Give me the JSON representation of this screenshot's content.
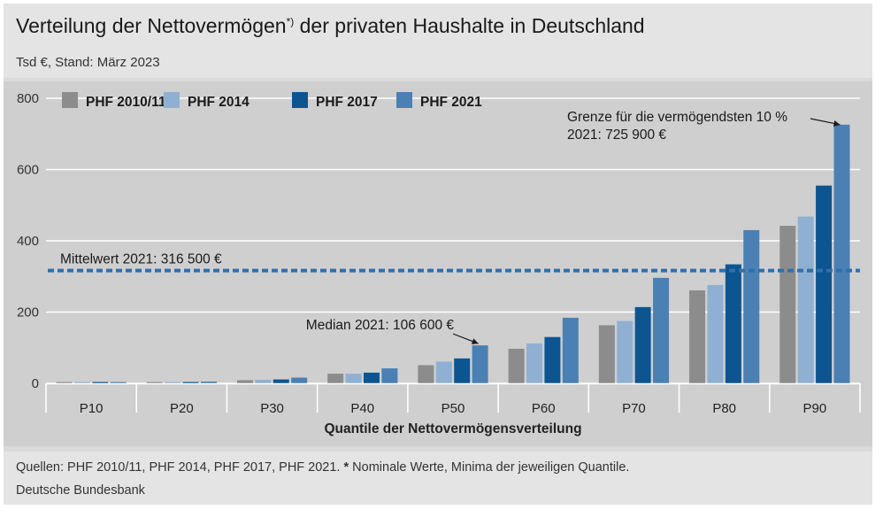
{
  "header": {
    "title": "Verteilung der Nettovermögen",
    "title_mark": "*)",
    "title_rest": " der privaten Haushalte in Deutschland",
    "subtitle": "Tsd €, Stand: März 2023"
  },
  "footer": {
    "sources_prefix": "Quellen: PHF 2010/11, PHF 2014, PHF 2017, PHF 2021. ",
    "sources_mark": "*",
    "sources_rest": " Nominale Werte, Minima der jeweiligen Quantile.",
    "publisher": "Deutsche Bundesbank"
  },
  "chart_data": {
    "type": "bar",
    "title": "Verteilung der Nettovermögen*) der privaten Haushalte in Deutschland",
    "subtitle": "Tsd €, Stand: März 2023",
    "xlabel": "Quantile der Nettovermögensverteilung",
    "ylabel": "",
    "ylim": [
      0,
      800
    ],
    "yticks": [
      0,
      200,
      400,
      600,
      800
    ],
    "grid": true,
    "legend_position": "top-left",
    "categories": [
      "P10",
      "P20",
      "P30",
      "P40",
      "P50",
      "P60",
      "P70",
      "P80",
      "P90"
    ],
    "series": [
      {
        "name": "PHF 2010/11",
        "color": "#8c8c8c",
        "values": [
          0.3,
          3,
          9,
          27,
          51,
          97,
          163,
          261,
          442
        ]
      },
      {
        "name": "PHF 2014",
        "color": "#8fb0d2",
        "values": [
          0.4,
          3,
          10,
          27,
          61,
          112,
          175,
          276,
          468
        ]
      },
      {
        "name": "PHF 2017",
        "color": "#0d5590",
        "values": [
          0.4,
          3,
          11,
          30,
          70,
          130,
          214,
          334,
          555
        ]
      },
      {
        "name": "PHF 2021",
        "color": "#4a80b4",
        "values": [
          0.6,
          5,
          16,
          42,
          106.6,
          184,
          296,
          430,
          725.9
        ]
      }
    ],
    "reference_line": {
      "label": "Mittelwert 2021: 316 500 €",
      "value": 316.5,
      "color": "#2f6fad"
    },
    "annotations": [
      {
        "text": "Median 2021: 106 600 €",
        "category": "P50",
        "series": "PHF 2021",
        "value": 106.6
      },
      {
        "text": "Grenze für die vermögendsten 10 %",
        "text2": "2021: 725 900 €",
        "category": "P90",
        "series": "PHF 2021",
        "value": 725.9
      }
    ]
  }
}
